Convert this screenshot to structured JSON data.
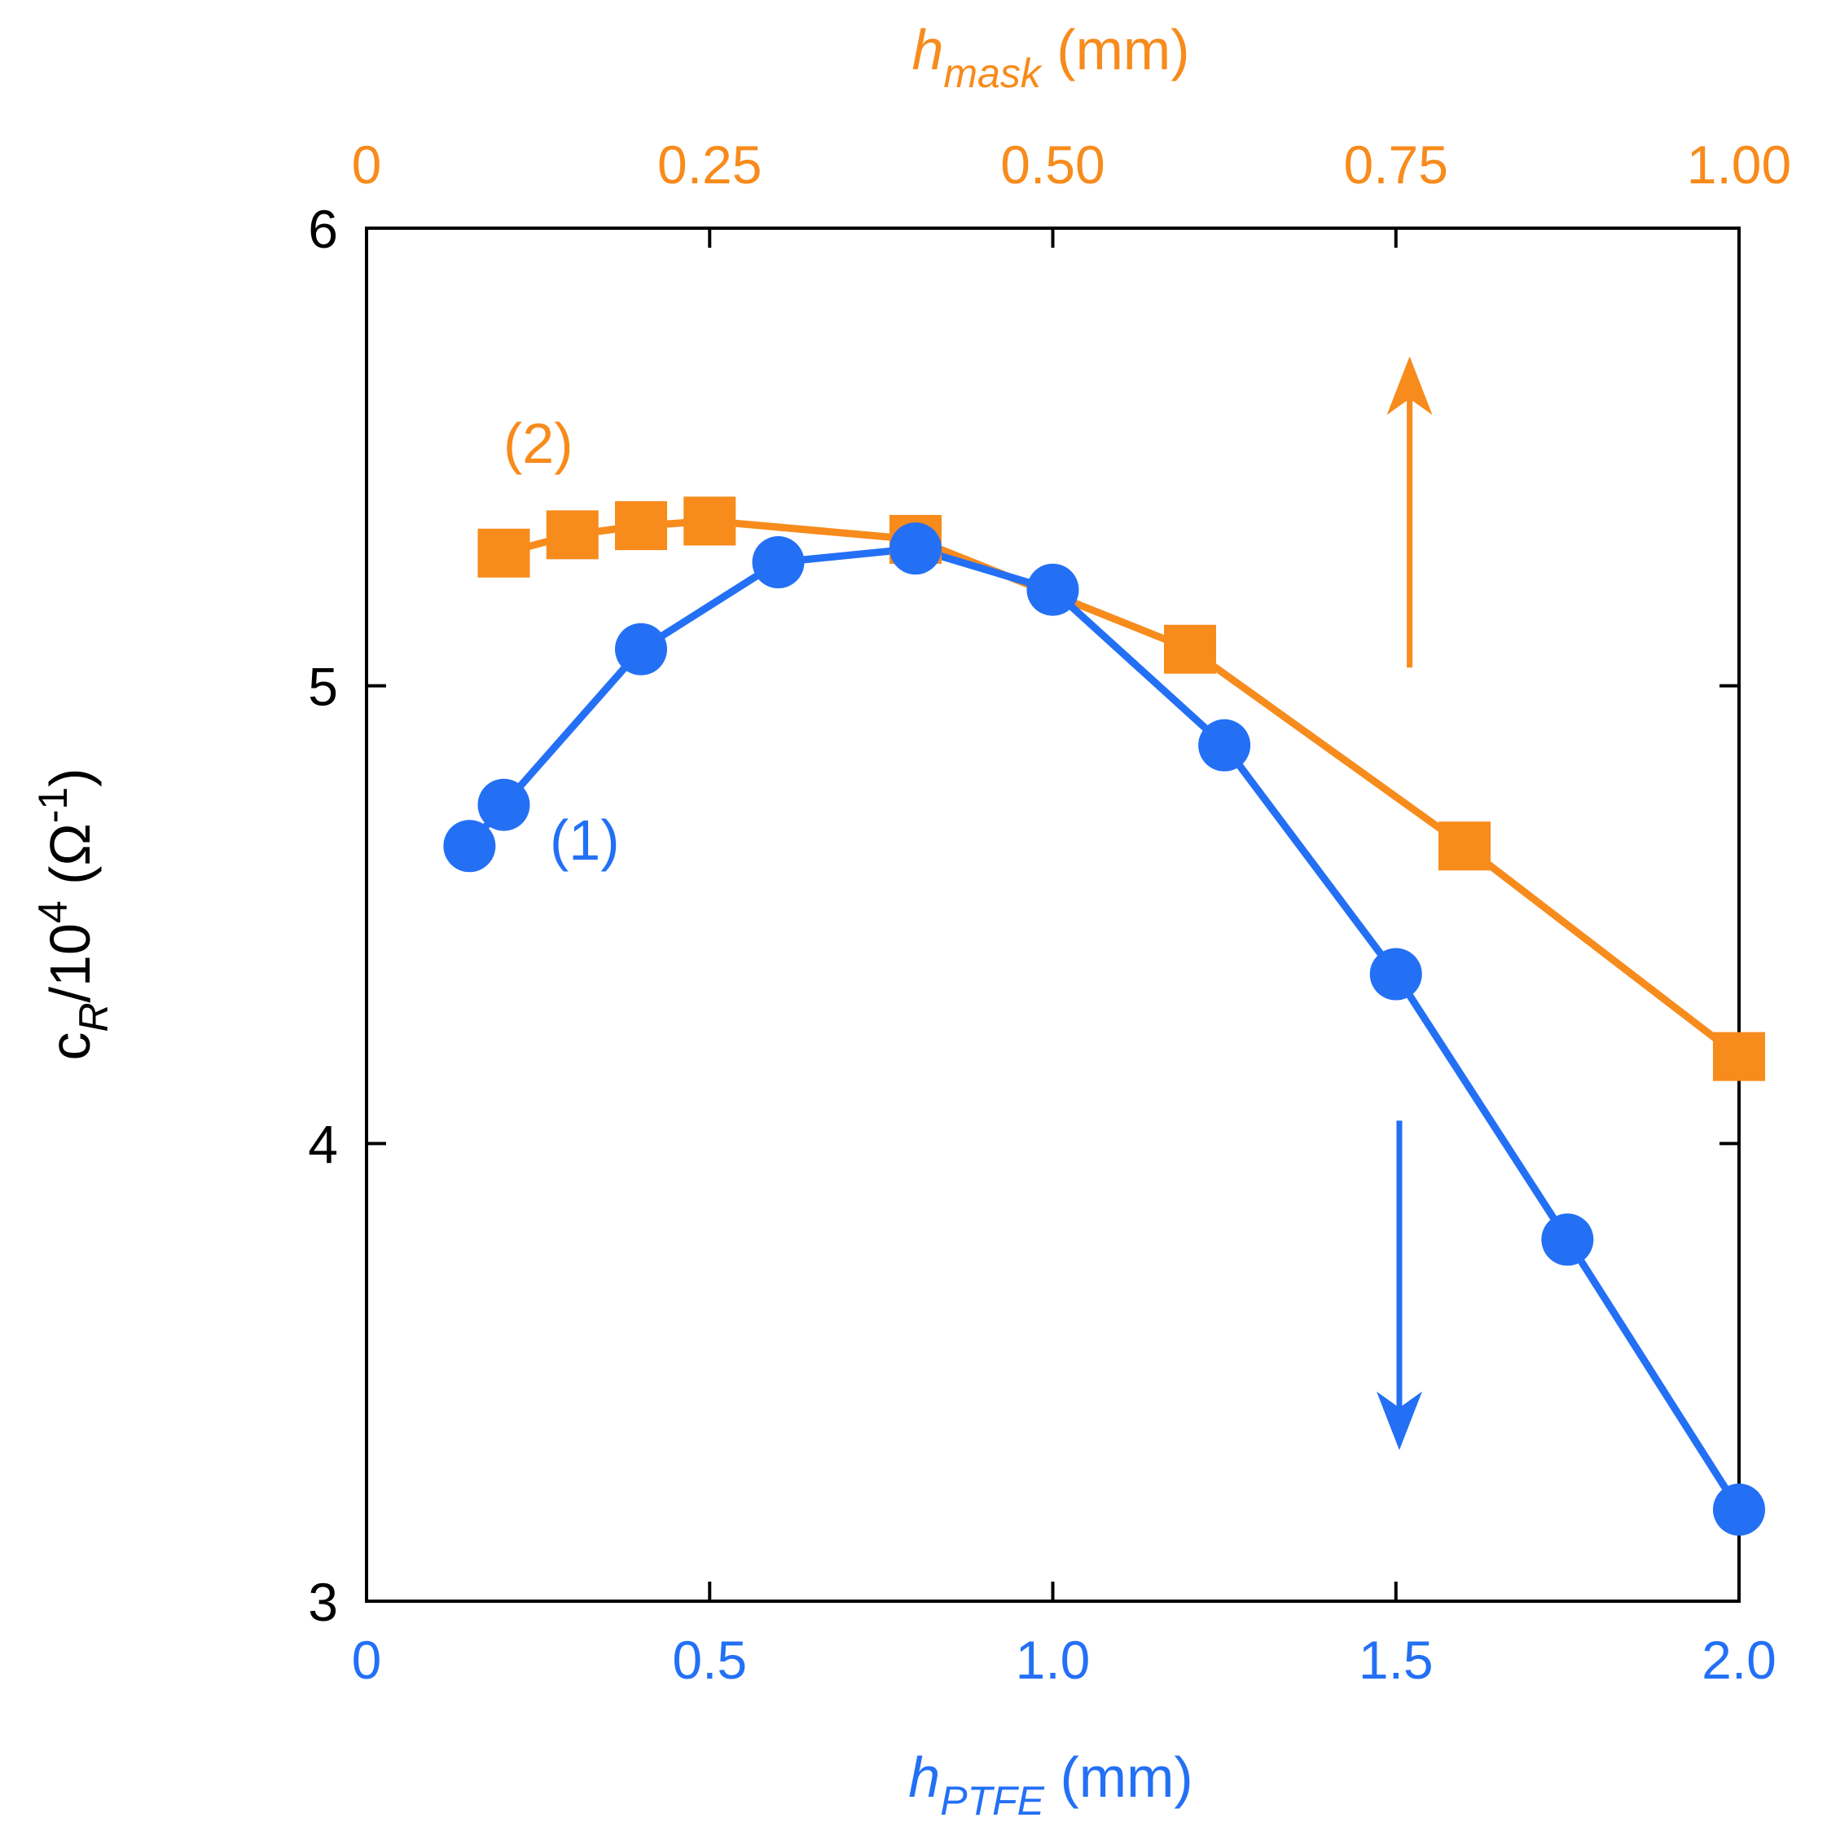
{
  "chart_data": {
    "type": "line",
    "xlabel": {
      "main": "h",
      "sub": "PTFE",
      "unit": " (mm)"
    },
    "x2label": {
      "main": "h",
      "sub": "mask",
      "unit": " (mm)"
    },
    "ylabel": {
      "c": "c",
      "sub": "R",
      "mid": "/10",
      "sup": "4",
      "pre": " (Ω",
      "sup2": "-1",
      "post": ")"
    },
    "xlim": [
      0,
      2.0
    ],
    "x2lim": [
      0,
      1.0
    ],
    "ylim": [
      3,
      6
    ],
    "x_ticks": [
      0,
      0.5,
      1.0,
      1.5,
      2.0
    ],
    "x_tick_labels": [
      "0",
      "0.5",
      "1.0",
      "1.5",
      "2.0"
    ],
    "x2_ticks": [
      0,
      0.25,
      0.5,
      0.75,
      1.0
    ],
    "x2_tick_labels": [
      "0",
      "0.25",
      "0.50",
      "0.75",
      "1.00"
    ],
    "y_ticks": [
      3,
      4,
      5,
      6
    ],
    "y_tick_labels": [
      "3",
      "4",
      "5",
      "6"
    ],
    "colors": {
      "series1": "#2370f5",
      "series2": "#f78b1c",
      "axis": "#000000"
    },
    "series": [
      {
        "name": "(1)",
        "axis": "bottom",
        "marker": "circle",
        "x": [
          0.15,
          0.2,
          0.4,
          0.6,
          0.8,
          1.0,
          1.25,
          1.5,
          1.75,
          2.0
        ],
        "y": [
          4.65,
          4.74,
          5.08,
          5.27,
          5.3,
          5.21,
          4.87,
          4.37,
          3.79,
          3.2
        ]
      },
      {
        "name": "(2)",
        "axis": "top",
        "marker": "square",
        "x": [
          0.1,
          0.15,
          0.2,
          0.25,
          0.4,
          0.6,
          0.8,
          1.0
        ],
        "y": [
          5.29,
          5.33,
          5.35,
          5.36,
          5.32,
          5.08,
          4.65,
          4.19
        ]
      }
    ],
    "annotations": [
      {
        "text": "(1)",
        "series": "series1"
      },
      {
        "text": "(2)",
        "series": "series2"
      },
      {
        "type": "arrow",
        "direction": "up",
        "series": "series2",
        "meaning": "refers to top axis"
      },
      {
        "type": "arrow",
        "direction": "down",
        "series": "series1",
        "meaning": "refers to bottom axis"
      }
    ]
  }
}
